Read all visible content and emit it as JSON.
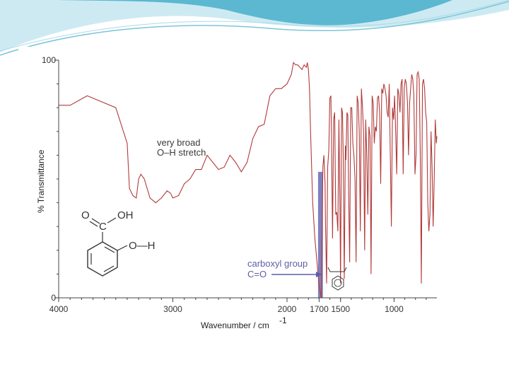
{
  "colors": {
    "header_light": "#bfe6f0",
    "header_dark": "#45aec8",
    "spectrum_line": "#b23a3a",
    "highlight_band": "#6a6ab4",
    "annotation_blue": "#5e5ea8"
  },
  "chart_data": {
    "type": "line",
    "title": "",
    "xlabel": "Wavenumber / cm",
    "xlabel_superscript": "-1",
    "ylabel": "% Transmittance",
    "x_reversed": true,
    "xlim": [
      4000,
      600
    ],
    "ylim": [
      0,
      100
    ],
    "grid": false,
    "x_ticks": [
      {
        "value": 4000,
        "label": "4000"
      },
      {
        "value": 3000,
        "label": "3000"
      },
      {
        "value": 2000,
        "label": "2000"
      },
      {
        "value": 1700,
        "label": "1700"
      },
      {
        "value": 1500,
        "label": "1500"
      },
      {
        "value": 1000,
        "label": "1000"
      }
    ],
    "y_ticks": [
      {
        "value": 100,
        "label": "100"
      },
      {
        "value": 0,
        "label": "0"
      }
    ],
    "series": [
      {
        "x": [
          4000,
          3900,
          3750,
          3650,
          3500,
          3400,
          3380,
          3350,
          3320,
          3300,
          3280,
          3250,
          3200,
          3150,
          3100,
          3050,
          3020,
          3000,
          2950,
          2900,
          2850,
          2800,
          2750,
          2700,
          2650,
          2600,
          2550,
          2500,
          2450,
          2400,
          2350,
          2300,
          2250,
          2200,
          2150,
          2100,
          2050,
          2000,
          1960,
          1940,
          1920,
          1900,
          1880,
          1860,
          1840,
          1820,
          1810,
          1800,
          1790,
          1780,
          1760,
          1740,
          1720,
          1700,
          1680,
          1665,
          1655,
          1645,
          1640,
          1630,
          1620,
          1610,
          1600,
          1590,
          1585,
          1575,
          1565,
          1555,
          1545,
          1535,
          1525,
          1515,
          1505,
          1500,
          1490,
          1482,
          1475,
          1465,
          1455,
          1450,
          1440,
          1432,
          1425,
          1415,
          1405,
          1395,
          1385,
          1375,
          1365,
          1355,
          1345,
          1335,
          1325,
          1315,
          1305,
          1295,
          1285,
          1275,
          1265,
          1255,
          1245,
          1235,
          1225,
          1215,
          1205,
          1195,
          1185,
          1175,
          1165,
          1155,
          1145,
          1135,
          1125,
          1115,
          1105,
          1095,
          1085,
          1075,
          1065,
          1055,
          1045,
          1035,
          1025,
          1015,
          1005,
          995,
          985,
          975,
          965,
          955,
          945,
          935,
          925,
          915,
          905,
          895,
          885,
          875,
          865,
          855,
          845,
          835,
          825,
          815,
          805,
          795,
          785,
          775,
          765,
          755,
          745,
          735,
          725,
          715,
          705,
          695,
          685,
          675,
          665,
          655,
          645,
          635,
          625,
          615,
          605,
          600
        ],
        "y": [
          81,
          81,
          85,
          83,
          80,
          65,
          46,
          43,
          42,
          50,
          52,
          50,
          42,
          40,
          42,
          45,
          44,
          42,
          43,
          48,
          50,
          54,
          54,
          60,
          57,
          54,
          55,
          60,
          57,
          53,
          57,
          67,
          72,
          73,
          85,
          88,
          88,
          90,
          94,
          99,
          98,
          98,
          97,
          96,
          98,
          97,
          99,
          96,
          88,
          70,
          40,
          25,
          15,
          5,
          0,
          55,
          60,
          48,
          30,
          6,
          55,
          62,
          84,
          85,
          70,
          25,
          75,
          78,
          35,
          36,
          28,
          75,
          34,
          6,
          80,
          78,
          60,
          8,
          64,
          58,
          78,
          77,
          45,
          15,
          80,
          80,
          65,
          60,
          50,
          15,
          85,
          82,
          70,
          28,
          88,
          80,
          70,
          20,
          75,
          60,
          35,
          72,
          68,
          10,
          85,
          82,
          65,
          72,
          70,
          84,
          85,
          78,
          48,
          88,
          86,
          90,
          88,
          85,
          78,
          76,
          90,
          60,
          30,
          80,
          75,
          85,
          70,
          52,
          88,
          86,
          78,
          90,
          92,
          52,
          88,
          92,
          90,
          82,
          60,
          82,
          88,
          94,
          92,
          85,
          52,
          60,
          94,
          95,
          92,
          60,
          6,
          90,
          92,
          88,
          78,
          74,
          40,
          28,
          35,
          70,
          55,
          30,
          50,
          75,
          65,
          68
        ]
      }
    ],
    "annotations": [
      {
        "line1": "very broad",
        "line2": "O–H stretch"
      },
      {
        "line1": "carboxyl group",
        "line2": "C=O"
      }
    ],
    "highlight_band": {
      "x_from": 1710,
      "x_to": 1665,
      "y_top": 53
    }
  },
  "structure": {
    "o_label": "O",
    "oh_label": "OH",
    "c_label": "C",
    "o_h_label": "O—H"
  }
}
